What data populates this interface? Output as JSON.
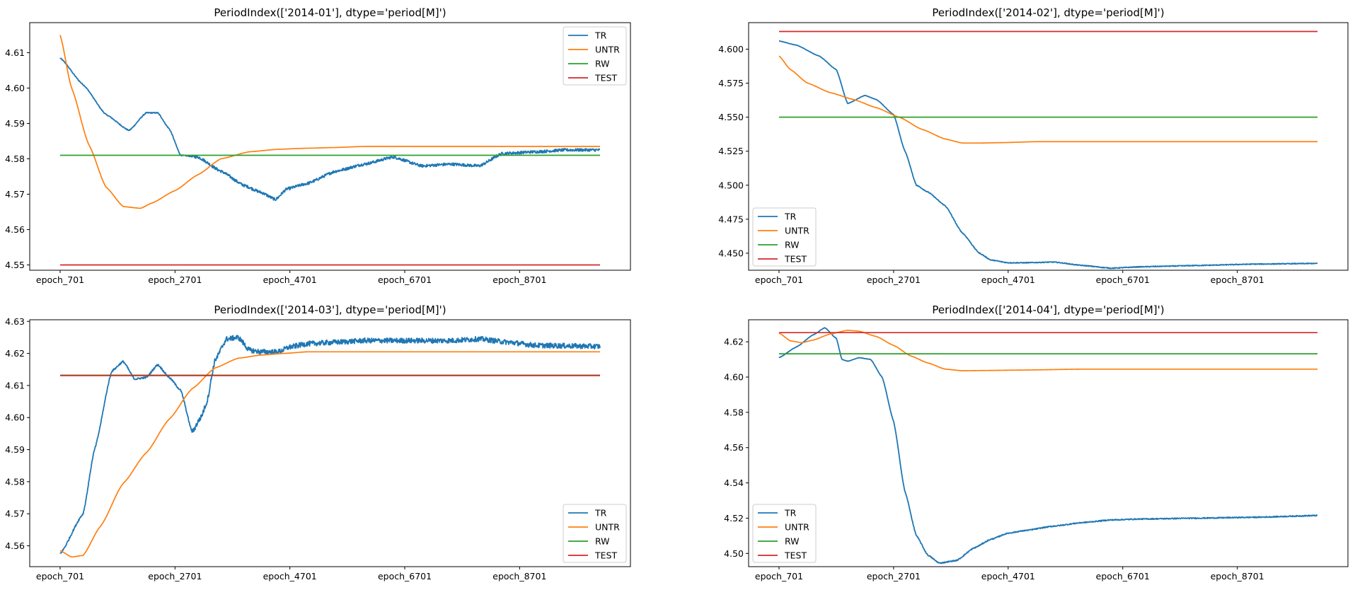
{
  "colors": {
    "TR": "#1f77b4",
    "UNTR": "#ff7f0e",
    "RW": "#2ca02c",
    "TEST": "#d62728"
  },
  "chart_data": [
    {
      "type": "line",
      "title": "PeriodIndex(['2014-01'], dtype='period[M]')",
      "xlabel": "",
      "ylabel": "",
      "x_ticks": [
        "epoch_701",
        "epoch_2701",
        "epoch_4701",
        "epoch_6701",
        "epoch_8701"
      ],
      "x_tick_values": [
        701,
        2701,
        4701,
        6701,
        8701
      ],
      "xlim": [
        701,
        10101
      ],
      "ylim": [
        4.5485,
        4.6185
      ],
      "y_ticks": [
        "4.55",
        "4.56",
        "4.57",
        "4.58",
        "4.59",
        "4.60",
        "4.61"
      ],
      "y_tick_values": [
        4.55,
        4.56,
        4.57,
        4.58,
        4.59,
        4.6,
        4.61
      ],
      "legend": "top-right",
      "series": [
        {
          "name": "TR",
          "x": [
            701,
            1100,
            1500,
            1900,
            2200,
            2400,
            2600,
            2800,
            3100,
            3500,
            3900,
            4200,
            4450,
            4650,
            5000,
            5500,
            6000,
            6500,
            7000,
            7500,
            8000,
            8400,
            9000,
            9500,
            10101
          ],
          "y": [
            4.6085,
            4.601,
            4.5925,
            4.588,
            4.593,
            4.593,
            4.5885,
            4.581,
            4.5805,
            4.5765,
            4.5725,
            4.5705,
            4.5685,
            4.5715,
            4.573,
            4.5765,
            4.5785,
            4.5805,
            4.578,
            4.5785,
            4.578,
            4.5815,
            4.582,
            4.5825,
            4.5825
          ],
          "noise": 0.0004
        },
        {
          "name": "UNTR",
          "x": [
            701,
            900,
            1200,
            1500,
            1800,
            2100,
            2300,
            2700,
            3100,
            3500,
            4000,
            4500,
            5000,
            5500,
            6000,
            10101
          ],
          "y": [
            4.615,
            4.6,
            4.584,
            4.572,
            4.5665,
            4.566,
            4.5675,
            4.571,
            4.5755,
            4.58,
            4.582,
            4.5827,
            4.583,
            4.5832,
            4.5835,
            4.5835
          ]
        },
        {
          "name": "RW",
          "x": [
            701,
            10101
          ],
          "y": [
            4.581,
            4.581
          ]
        },
        {
          "name": "TEST",
          "x": [
            701,
            10101
          ],
          "y": [
            4.55,
            4.55
          ]
        }
      ]
    },
    {
      "type": "line",
      "title": "PeriodIndex(['2014-02'], dtype='period[M]')",
      "xlabel": "",
      "ylabel": "",
      "x_ticks": [
        "epoch_701",
        "epoch_2701",
        "epoch_4701",
        "epoch_6701",
        "epoch_8701"
      ],
      "x_tick_values": [
        701,
        2701,
        4701,
        6701,
        8701
      ],
      "xlim": [
        701,
        10101
      ],
      "ylim": [
        4.4375,
        4.6195
      ],
      "y_ticks": [
        "4.450",
        "4.475",
        "4.500",
        "4.525",
        "4.550",
        "4.575",
        "4.600"
      ],
      "y_tick_values": [
        4.45,
        4.475,
        4.5,
        4.525,
        4.55,
        4.575,
        4.6
      ],
      "legend": "lower-left",
      "series": [
        {
          "name": "TR",
          "x": [
            701,
            1000,
            1400,
            1700,
            1900,
            2200,
            2400,
            2700,
            2900,
            3100,
            3300,
            3600,
            3900,
            4200,
            4400,
            4700,
            5000,
            5500,
            6000,
            6500,
            7000,
            7500,
            8000,
            9000,
            10101
          ],
          "y": [
            4.606,
            4.603,
            4.595,
            4.585,
            4.56,
            4.566,
            4.563,
            4.552,
            4.525,
            4.5,
            4.495,
            4.485,
            4.465,
            4.45,
            4.445,
            4.443,
            4.443,
            4.4435,
            4.441,
            4.439,
            4.44,
            4.4405,
            4.441,
            4.442,
            4.4425
          ],
          "noise": 0.0003
        },
        {
          "name": "UNTR",
          "x": [
            701,
            900,
            1200,
            1600,
            2000,
            2400,
            2800,
            3200,
            3600,
            3900,
            4200,
            4600,
            5200,
            6000,
            10101
          ],
          "y": [
            4.595,
            4.585,
            4.575,
            4.568,
            4.563,
            4.557,
            4.55,
            4.541,
            4.534,
            4.531,
            4.531,
            4.5313,
            4.532,
            4.532,
            4.532
          ]
        },
        {
          "name": "RW",
          "x": [
            701,
            10101
          ],
          "y": [
            4.55,
            4.55
          ]
        },
        {
          "name": "TEST",
          "x": [
            701,
            10101
          ],
          "y": [
            4.613,
            4.613
          ]
        }
      ]
    },
    {
      "type": "line",
      "title": "PeriodIndex(['2014-03'], dtype='period[M]')",
      "xlabel": "",
      "ylabel": "",
      "x_ticks": [
        "epoch_701",
        "epoch_2701",
        "epoch_4701",
        "epoch_6701",
        "epoch_8701"
      ],
      "x_tick_values": [
        701,
        2701,
        4701,
        6701,
        8701
      ],
      "xlim": [
        701,
        10101
      ],
      "ylim": [
        4.5535,
        4.6305
      ],
      "y_ticks": [
        "4.56",
        "4.57",
        "4.58",
        "4.59",
        "4.60",
        "4.61",
        "4.62",
        "4.63"
      ],
      "y_tick_values": [
        4.56,
        4.57,
        4.58,
        4.59,
        4.6,
        4.61,
        4.62,
        4.63
      ],
      "legend": "lower-right",
      "series": [
        {
          "name": "TR",
          "x": [
            701,
            1100,
            1300,
            1600,
            1800,
            2000,
            2200,
            2400,
            2600,
            2800,
            3000,
            3150,
            3250,
            3400,
            3600,
            3800,
            4000,
            4200,
            4500,
            4700,
            5000,
            5500,
            6000,
            6500,
            7000,
            7500,
            8000,
            8500,
            9000,
            10101
          ],
          "y": [
            4.5575,
            4.57,
            4.59,
            4.6145,
            4.6175,
            4.612,
            4.6125,
            4.6165,
            4.6125,
            4.6085,
            4.5955,
            4.6,
            4.6045,
            4.618,
            4.6245,
            4.625,
            4.621,
            4.6205,
            4.6205,
            4.622,
            4.623,
            4.6235,
            4.624,
            4.624,
            4.624,
            4.624,
            4.6245,
            4.6235,
            4.6225,
            4.6222
          ],
          "noise": 0.0008
        },
        {
          "name": "UNTR",
          "x": [
            701,
            900,
            1100,
            1400,
            1800,
            2200,
            2600,
            3000,
            3400,
            3800,
            4200,
            4600,
            5000,
            5500,
            6000,
            10101
          ],
          "y": [
            4.5585,
            4.5565,
            4.557,
            4.566,
            4.5795,
            4.589,
            4.5995,
            4.609,
            4.6155,
            4.6185,
            4.6195,
            4.62,
            4.6205,
            4.6205,
            4.6205,
            4.6205
          ]
        },
        {
          "name": "RW",
          "x": [
            701,
            10101
          ],
          "y": [
            4.6132,
            4.6132
          ]
        },
        {
          "name": "TEST",
          "x": [
            701,
            10101
          ],
          "y": [
            4.6131,
            4.6131
          ]
        }
      ]
    },
    {
      "type": "line",
      "title": "PeriodIndex(['2014-04'], dtype='period[M]')",
      "xlabel": "",
      "ylabel": "",
      "x_ticks": [
        "epoch_701",
        "epoch_2701",
        "epoch_4701",
        "epoch_6701",
        "epoch_8701"
      ],
      "x_tick_values": [
        701,
        2701,
        4701,
        6701,
        8701
      ],
      "xlim": [
        701,
        10101
      ],
      "ylim": [
        4.4925,
        4.6325
      ],
      "y_ticks": [
        "4.50",
        "4.52",
        "4.54",
        "4.56",
        "4.58",
        "4.60",
        "4.62"
      ],
      "y_tick_values": [
        4.5,
        4.52,
        4.54,
        4.56,
        4.58,
        4.6,
        4.62
      ],
      "legend": "lower-left",
      "series": [
        {
          "name": "TR",
          "x": [
            701,
            1000,
            1300,
            1500,
            1700,
            1800,
            1900,
            2100,
            2300,
            2500,
            2700,
            2900,
            3100,
            3300,
            3500,
            3800,
            4100,
            4400,
            4700,
            5000,
            5500,
            6000,
            6500,
            7000,
            8000,
            9000,
            10101
          ],
          "y": [
            4.611,
            4.617,
            4.624,
            4.628,
            4.622,
            4.61,
            4.609,
            4.611,
            4.61,
            4.6,
            4.575,
            4.535,
            4.51,
            4.499,
            4.4945,
            4.496,
            4.503,
            4.508,
            4.5115,
            4.513,
            4.5155,
            4.5175,
            4.519,
            4.5195,
            4.52,
            4.5205,
            4.5215
          ],
          "noise": 0.0003
        },
        {
          "name": "UNTR",
          "x": [
            701,
            900,
            1100,
            1300,
            1600,
            1900,
            2100,
            2400,
            2700,
            3000,
            3300,
            3600,
            3900,
            4200,
            5000,
            6000,
            10101
          ],
          "y": [
            4.625,
            4.6205,
            4.6195,
            4.621,
            4.6245,
            4.6265,
            4.626,
            4.623,
            4.618,
            4.612,
            4.608,
            4.6045,
            4.6036,
            4.6037,
            4.604,
            4.6045,
            4.6045
          ]
        },
        {
          "name": "RW",
          "x": [
            701,
            10101
          ],
          "y": [
            4.6132,
            4.6132
          ]
        },
        {
          "name": "TEST",
          "x": [
            701,
            10101
          ],
          "y": [
            4.6252,
            4.6252
          ]
        }
      ]
    }
  ]
}
